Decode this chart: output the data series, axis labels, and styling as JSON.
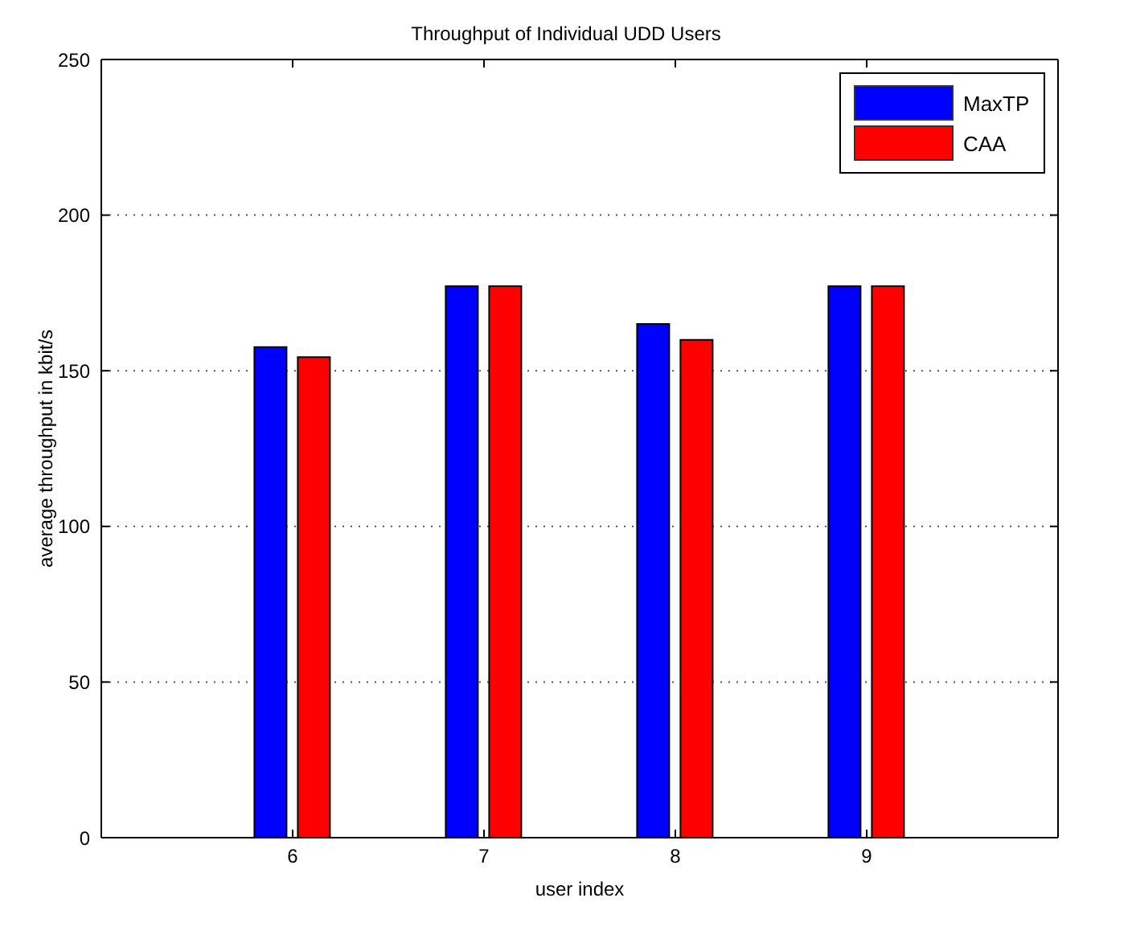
{
  "chart_data": {
    "type": "bar",
    "title": "Throughput of Individual UDD Users",
    "xlabel": "user index",
    "ylabel": "average throughput in kbit/s",
    "x": [
      6,
      7,
      8,
      9
    ],
    "series": [
      {
        "name": "MaxTP",
        "color": "#0000ff",
        "values": [
          157.6,
          177.2,
          165,
          177.2
        ]
      },
      {
        "name": "CAA",
        "color": "#ff0000",
        "values": [
          154.4,
          177.2,
          159.9,
          177.2
        ]
      }
    ],
    "xlim": [
      5,
      10
    ],
    "xticks": [
      6,
      7,
      8,
      9
    ],
    "ylim": [
      0,
      250
    ],
    "yticks": [
      0,
      50,
      100,
      150,
      200,
      250
    ],
    "grid": "y",
    "legend": "top right"
  }
}
